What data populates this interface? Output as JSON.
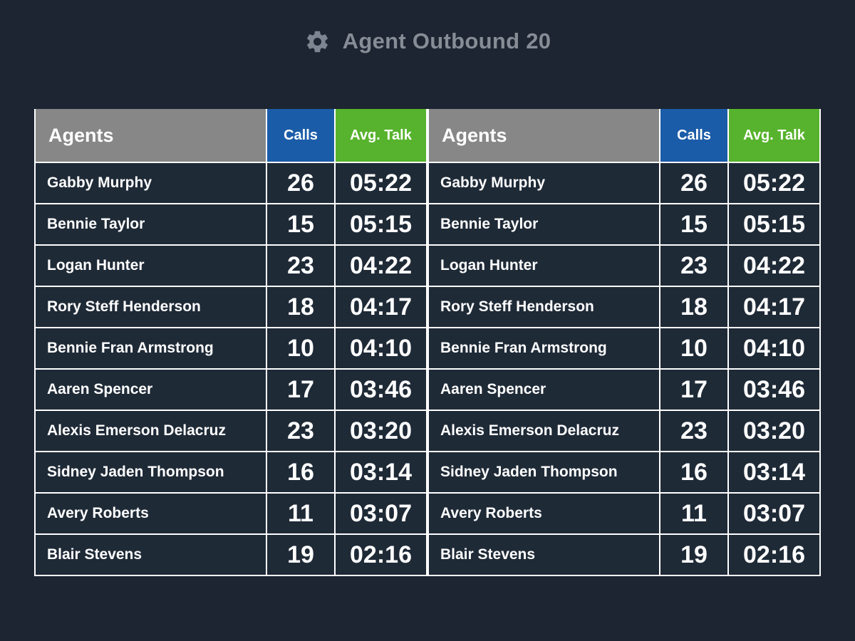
{
  "title_bar": {
    "title": "Agent Outbound 20",
    "icon": "gear-icon"
  },
  "colors": {
    "background": "#1c2531",
    "cell_background": "#1f2a37",
    "grid_lines": "#ffffff",
    "header_agents": "#878787",
    "header_calls": "#1b5ca8",
    "header_avg_talk": "#57b32d",
    "title_text": "#868d96",
    "row_text": "#ffffff"
  },
  "panels": [
    {
      "columns": {
        "agents": "Agents",
        "calls": "Calls",
        "avg_talk": "Avg. Talk"
      },
      "rows": [
        {
          "name": "Gabby Murphy",
          "calls": "26",
          "avg_talk": "05:22"
        },
        {
          "name": "Bennie Taylor",
          "calls": "15",
          "avg_talk": "05:15"
        },
        {
          "name": "Logan Hunter",
          "calls": "23",
          "avg_talk": "04:22"
        },
        {
          "name": "Rory Steff Henderson",
          "calls": "18",
          "avg_talk": "04:17"
        },
        {
          "name": "Bennie Fran Armstrong",
          "calls": "10",
          "avg_talk": "04:10"
        },
        {
          "name": "Aaren Spencer",
          "calls": "17",
          "avg_talk": "03:46"
        },
        {
          "name": "Alexis Emerson Delacruz",
          "calls": "23",
          "avg_talk": "03:20"
        },
        {
          "name": "Sidney Jaden Thompson",
          "calls": "16",
          "avg_talk": "03:14"
        },
        {
          "name": "Avery Roberts",
          "calls": "11",
          "avg_talk": "03:07"
        },
        {
          "name": "Blair Stevens",
          "calls": "19",
          "avg_talk": "02:16"
        }
      ]
    },
    {
      "columns": {
        "agents": "Agents",
        "calls": "Calls",
        "avg_talk": "Avg. Talk"
      },
      "rows": [
        {
          "name": "Gabby Murphy",
          "calls": "26",
          "avg_talk": "05:22"
        },
        {
          "name": "Bennie Taylor",
          "calls": "15",
          "avg_talk": "05:15"
        },
        {
          "name": "Logan Hunter",
          "calls": "23",
          "avg_talk": "04:22"
        },
        {
          "name": "Rory Steff Henderson",
          "calls": "18",
          "avg_talk": "04:17"
        },
        {
          "name": "Bennie Fran Armstrong",
          "calls": "10",
          "avg_talk": "04:10"
        },
        {
          "name": "Aaren Spencer",
          "calls": "17",
          "avg_talk": "03:46"
        },
        {
          "name": "Alexis Emerson Delacruz",
          "calls": "23",
          "avg_talk": "03:20"
        },
        {
          "name": "Sidney Jaden Thompson",
          "calls": "16",
          "avg_talk": "03:14"
        },
        {
          "name": "Avery Roberts",
          "calls": "11",
          "avg_talk": "03:07"
        },
        {
          "name": "Blair Stevens",
          "calls": "19",
          "avg_talk": "02:16"
        }
      ]
    }
  ]
}
